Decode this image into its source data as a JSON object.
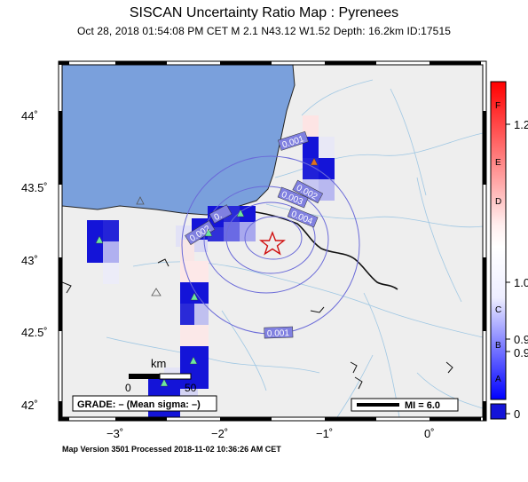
{
  "title": "SISCAN Uncertainty Ratio Map : Pyrenees",
  "subtitle": "Oct 28, 2018 01:54:08 PM CET    M 2.1    N43.12 W1.52   Depth: 16.2km    ID:17515",
  "footer": "Map Version 3501 Processed 2018-11-02 10:36:26 AM CET",
  "axes": {
    "lon_ticks": [
      "−3˚",
      "−2˚",
      "−1˚",
      "0˚"
    ],
    "lat_ticks": [
      "44˚",
      "43.5˚",
      "43˚",
      "42.5˚",
      "42˚"
    ]
  },
  "contours": [
    "0.001",
    "0.002",
    "0.003",
    "0.004",
    "0.002",
    "0.001"
  ],
  "scale_bar": {
    "unit": "km",
    "start": "0",
    "end": "50"
  },
  "grade_box": "GRADE: – (Mean sigma: –)",
  "mi_legend": "MI = 6.0",
  "colorbar": {
    "letters": [
      "F",
      "E",
      "D",
      "C",
      "B",
      "A"
    ],
    "values": [
      "1.2",
      "1.0",
      "0.9",
      "0.9",
      "0"
    ]
  },
  "colors": {
    "sea": "#7aa0dc",
    "land": "#eeeeee",
    "cell_blue": "#1414d8",
    "epicenter": "#d01010",
    "station": "#6ee6a0"
  }
}
